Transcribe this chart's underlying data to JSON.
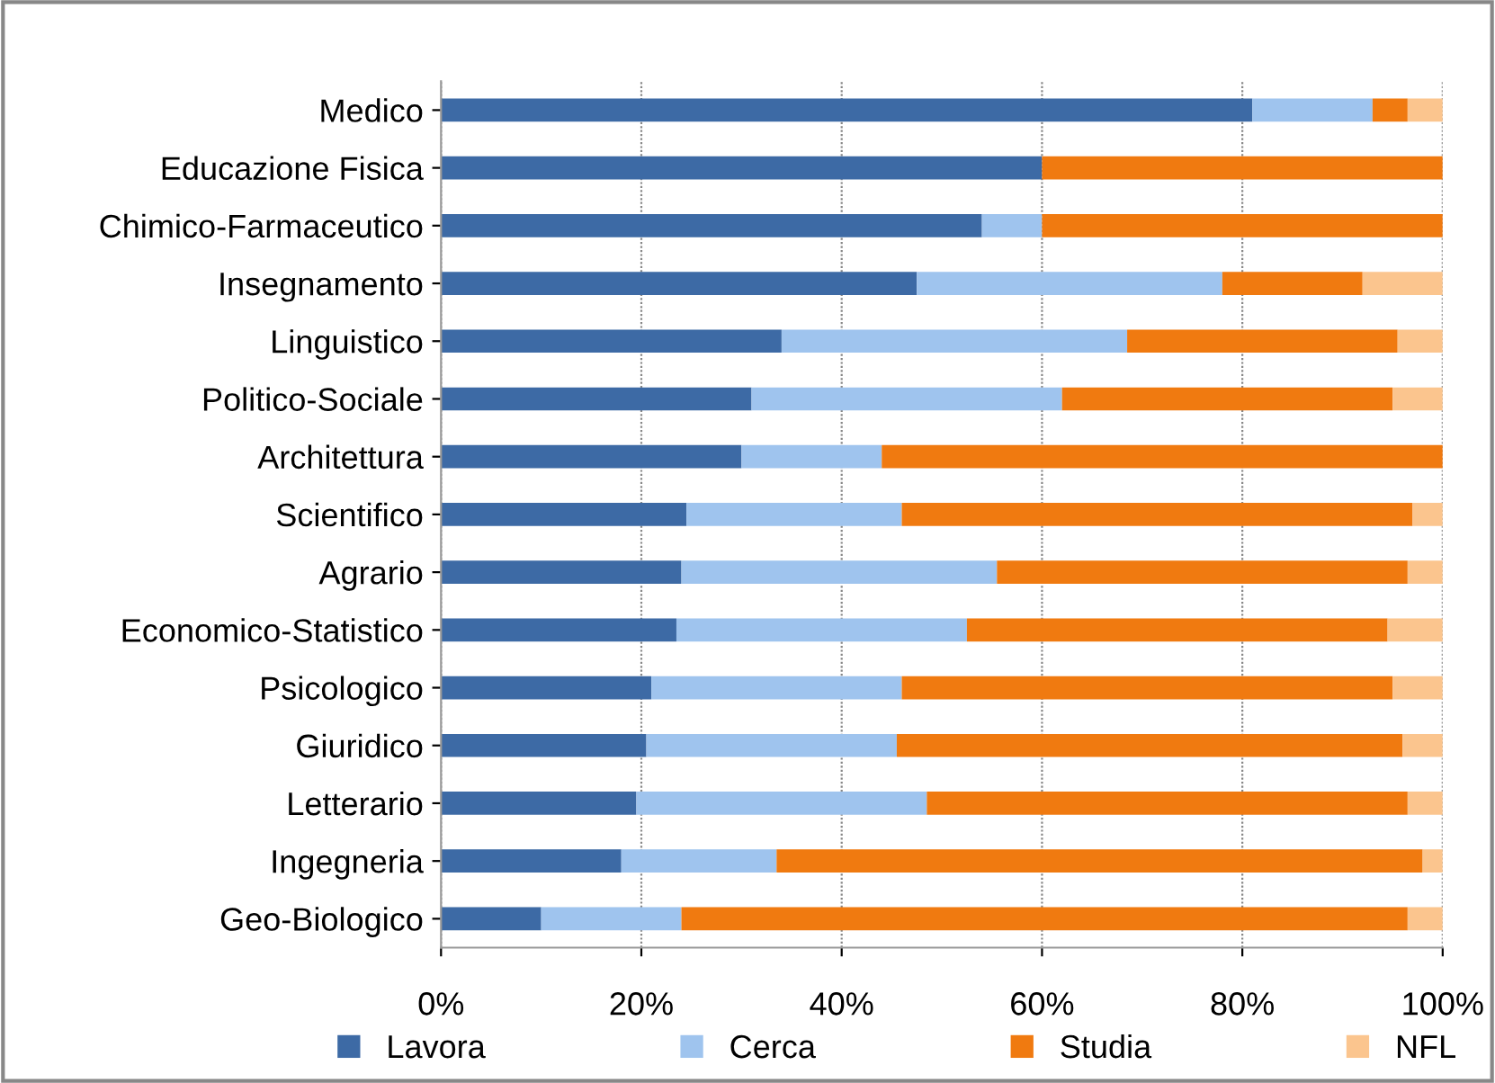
{
  "chart_data": {
    "type": "bar",
    "orientation": "horizontal",
    "stacked": true,
    "categories": [
      "Medico",
      "Educazione Fisica",
      "Chimico-Farmaceutico",
      "Insegnamento",
      "Linguistico",
      "Politico-Sociale",
      "Architettura",
      "Scientifico",
      "Agrario",
      "Economico-Statistico",
      "Psicologico",
      "Giuridico",
      "Letterario",
      "Ingegneria",
      "Geo-Biologico"
    ],
    "series": [
      {
        "name": "Lavora",
        "color": "#3d6aa5",
        "values": [
          81,
          60,
          54,
          47.5,
          34,
          31,
          30,
          24.5,
          24,
          23.5,
          21,
          20.5,
          19.5,
          18,
          10
        ]
      },
      {
        "name": "Cerca",
        "color": "#9fc4ee",
        "values": [
          12,
          0,
          6,
          30.5,
          34.5,
          31,
          14,
          21.5,
          31.5,
          29,
          25,
          25,
          29,
          15.5,
          14
        ]
      },
      {
        "name": "Studia",
        "color": "#f07a10",
        "values": [
          3.5,
          40,
          40,
          14,
          27,
          33,
          56,
          51,
          41,
          42,
          49,
          50.5,
          48,
          64.5,
          72.5
        ]
      },
      {
        "name": "NFL",
        "color": "#fbc58e",
        "values": [
          3.5,
          0,
          0,
          8,
          4.5,
          5,
          0,
          3,
          3.5,
          5.5,
          5,
          4,
          3.5,
          2,
          3.5
        ]
      }
    ],
    "xlim": [
      0,
      100
    ],
    "xticks": [
      {
        "value": 0,
        "label": "0%"
      },
      {
        "value": 20,
        "label": "20%"
      },
      {
        "value": 40,
        "label": "40%"
      },
      {
        "value": 60,
        "label": "60%"
      },
      {
        "value": 80,
        "label": "80%"
      },
      {
        "value": 100,
        "label": "100%"
      }
    ],
    "grid": "x",
    "legend": "bottom"
  }
}
